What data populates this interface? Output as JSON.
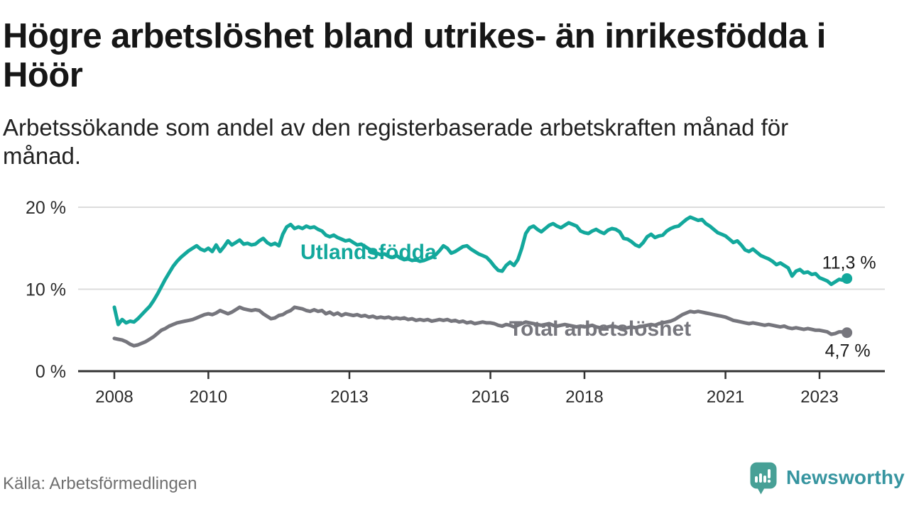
{
  "page": {
    "title": "Högre arbetslöshet bland utrikes- än inrikesfödda i Höör",
    "subtitle": "Arbetssökande som andel av den registerbaserade arbetskraften månad för månad.",
    "source": "Källa: Arbetsförmedlingen",
    "brand": {
      "name": "Newsworthy",
      "icon": "speech-bubble-bar-chart-icon",
      "icon_color": "#47a096",
      "text_color": "#3795a0"
    }
  },
  "colors": {
    "background": "#ffffff",
    "text": "#1a1a1a",
    "gridline": "#dcdcdc",
    "axis": "#333333",
    "teal_series": "#13a89c",
    "gray_series": "#76767d",
    "source_text": "#6f6f6f"
  },
  "chart_data": {
    "type": "line",
    "title": "Högre arbetslöshet bland utrikes- än inrikesfödda i Höör",
    "subtitle": "Arbetssökande som andel av den registerbaserade arbetskraften månad för månad.",
    "unit": "%",
    "frequency": "monthly",
    "start": "2008-01",
    "end": "2023-08",
    "ylim": [
      0,
      21
    ],
    "grid": "horizontal",
    "legend_position": "inline-labels",
    "yticks": [
      {
        "value": 0,
        "label": "0 %"
      },
      {
        "value": 10,
        "label": "10 %"
      },
      {
        "value": 20,
        "label": "20 %"
      }
    ],
    "xticks": [
      {
        "year": 2008,
        "label": "2008"
      },
      {
        "year": 2010,
        "label": "2010"
      },
      {
        "year": 2013,
        "label": "2013"
      },
      {
        "year": 2016,
        "label": "2016"
      },
      {
        "year": 2018,
        "label": "2018"
      },
      {
        "year": 2021,
        "label": "2021"
      },
      {
        "year": 2023,
        "label": "2023"
      }
    ],
    "series": [
      {
        "name": "Utlandsfödda",
        "color": "#13a89c",
        "end_value": 11.3,
        "end_label": "11,3 %",
        "values": [
          7.8,
          5.7,
          6.3,
          5.9,
          6.1,
          6.0,
          6.4,
          6.9,
          7.4,
          7.9,
          8.6,
          9.4,
          10.3,
          11.2,
          12.0,
          12.8,
          13.4,
          13.9,
          14.3,
          14.7,
          15.0,
          15.3,
          14.9,
          14.7,
          15.0,
          14.6,
          15.4,
          14.6,
          15.2,
          15.9,
          15.4,
          15.7,
          16.0,
          15.5,
          15.6,
          15.4,
          15.5,
          15.9,
          16.2,
          15.7,
          15.4,
          15.6,
          15.3,
          16.7,
          17.6,
          17.9,
          17.4,
          17.6,
          17.4,
          17.7,
          17.5,
          17.6,
          17.3,
          17.1,
          16.6,
          16.4,
          16.6,
          16.3,
          16.1,
          15.9,
          16.0,
          15.7,
          15.4,
          15.5,
          15.2,
          14.9,
          14.7,
          14.4,
          14.2,
          14.3,
          14.0,
          13.9,
          14.1,
          13.8,
          13.6,
          13.7,
          13.5,
          13.6,
          13.4,
          13.5,
          13.7,
          13.9,
          14.2,
          14.7,
          15.3,
          15.0,
          14.4,
          14.6,
          14.9,
          15.2,
          15.3,
          14.9,
          14.6,
          14.3,
          14.1,
          13.9,
          13.4,
          12.8,
          12.3,
          12.2,
          12.9,
          13.3,
          12.9,
          13.6,
          15.0,
          16.8,
          17.5,
          17.7,
          17.3,
          17.0,
          17.4,
          17.8,
          18.0,
          17.7,
          17.5,
          17.8,
          18.1,
          17.9,
          17.7,
          17.1,
          16.9,
          16.8,
          17.1,
          17.3,
          17.0,
          16.8,
          17.2,
          17.4,
          17.3,
          17.0,
          16.2,
          16.1,
          15.8,
          15.4,
          15.2,
          15.7,
          16.4,
          16.7,
          16.3,
          16.5,
          16.6,
          17.1,
          17.4,
          17.6,
          17.7,
          18.1,
          18.5,
          18.8,
          18.6,
          18.4,
          18.5,
          18.0,
          17.7,
          17.3,
          16.9,
          16.7,
          16.5,
          16.1,
          15.7,
          15.9,
          15.4,
          14.8,
          14.6,
          14.9,
          14.5,
          14.1,
          13.9,
          13.7,
          13.4,
          13.0,
          13.2,
          12.9,
          12.6,
          11.6,
          12.2,
          12.4,
          12.0,
          12.1,
          11.8,
          11.9,
          11.4,
          11.2,
          11.0,
          10.6,
          10.9,
          11.2,
          11.1,
          11.3
        ]
      },
      {
        "name": "Total arbetslöshet",
        "color": "#76767d",
        "end_value": 4.7,
        "end_label": "4,7 %",
        "values": [
          4.0,
          3.9,
          3.8,
          3.6,
          3.3,
          3.1,
          3.2,
          3.4,
          3.6,
          3.9,
          4.2,
          4.6,
          5.0,
          5.2,
          5.5,
          5.7,
          5.9,
          6.0,
          6.1,
          6.2,
          6.3,
          6.5,
          6.7,
          6.9,
          7.0,
          6.9,
          7.1,
          7.4,
          7.2,
          7.0,
          7.2,
          7.5,
          7.8,
          7.6,
          7.5,
          7.4,
          7.5,
          7.4,
          7.0,
          6.7,
          6.4,
          6.5,
          6.8,
          6.9,
          7.2,
          7.4,
          7.8,
          7.7,
          7.6,
          7.4,
          7.3,
          7.5,
          7.3,
          7.4,
          7.0,
          7.2,
          6.9,
          7.1,
          6.8,
          7.0,
          6.9,
          6.8,
          6.9,
          6.7,
          6.8,
          6.6,
          6.7,
          6.5,
          6.6,
          6.5,
          6.6,
          6.4,
          6.5,
          6.4,
          6.5,
          6.3,
          6.4,
          6.2,
          6.3,
          6.2,
          6.3,
          6.1,
          6.2,
          6.3,
          6.2,
          6.3,
          6.1,
          6.2,
          6.0,
          6.1,
          5.9,
          6.0,
          5.8,
          5.9,
          6.0,
          5.9,
          5.9,
          5.8,
          5.6,
          5.5,
          5.7,
          5.6,
          5.4,
          5.6,
          5.8,
          6.0,
          5.9,
          5.8,
          5.7,
          5.6,
          5.7,
          5.8,
          5.6,
          5.5,
          5.6,
          5.7,
          5.6,
          5.5,
          5.4,
          5.5,
          5.4,
          5.5,
          5.6,
          5.4,
          5.3,
          5.2,
          5.4,
          5.5,
          5.4,
          5.3,
          5.2,
          5.3,
          5.4,
          5.3,
          5.4,
          5.5,
          5.6,
          5.7,
          5.6,
          5.8,
          5.9,
          6.0,
          6.1,
          6.3,
          6.6,
          6.9,
          7.1,
          7.3,
          7.2,
          7.3,
          7.2,
          7.1,
          7.0,
          6.9,
          6.8,
          6.7,
          6.6,
          6.4,
          6.2,
          6.1,
          6.0,
          5.9,
          5.8,
          5.9,
          5.8,
          5.7,
          5.6,
          5.7,
          5.6,
          5.5,
          5.4,
          5.5,
          5.3,
          5.2,
          5.3,
          5.2,
          5.1,
          5.2,
          5.1,
          5.0,
          5.0,
          4.9,
          4.8,
          4.5,
          4.6,
          4.8,
          4.8,
          4.7
        ]
      }
    ]
  }
}
